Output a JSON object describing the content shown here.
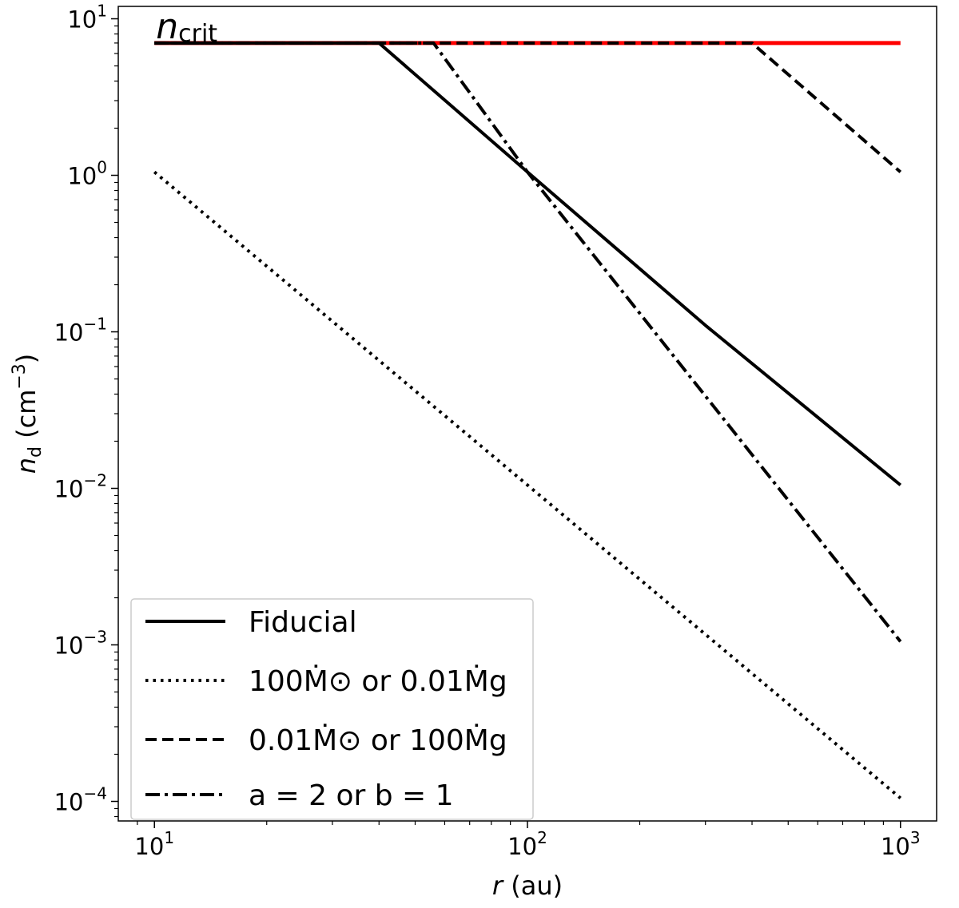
{
  "chart_data": {
    "type": "line",
    "xscale": "log",
    "yscale": "log",
    "xlim": [
      8.0,
      1250
    ],
    "ylim": [
      7.5e-05,
      12
    ],
    "grid": false,
    "legend_position": "lower-left",
    "x_ticks": [
      {
        "value": 10,
        "base": "10",
        "exp": "1"
      },
      {
        "value": 100,
        "base": "10",
        "exp": "2"
      },
      {
        "value": 1000,
        "base": "10",
        "exp": "3"
      }
    ],
    "y_ticks": [
      {
        "value": 0.0001,
        "base": "10",
        "exp": "−4"
      },
      {
        "value": 0.001,
        "base": "10",
        "exp": "−3"
      },
      {
        "value": 0.01,
        "base": "10",
        "exp": "−2"
      },
      {
        "value": 0.1,
        "base": "10",
        "exp": "−1"
      },
      {
        "value": 1,
        "base": "10",
        "exp": "0"
      },
      {
        "value": 10,
        "base": "10",
        "exp": "1"
      }
    ],
    "xlabel": {
      "var": "r",
      "rest": " (au)"
    },
    "ylabel": {
      "var": "n",
      "sub": "d",
      "rest": " (cm",
      "exp": "−3",
      "close": ")"
    },
    "annotation": {
      "var": "n",
      "sub": "crit"
    },
    "critical_line": {
      "color": "#ff0000",
      "x": [
        10,
        1000
      ],
      "y": [
        7.0,
        7.0
      ]
    },
    "series": [
      {
        "name": "Fiducial",
        "style": "solid",
        "color": "#000000",
        "x": [
          10,
          40,
          100,
          300,
          1000
        ],
        "y": [
          7.0,
          7.0,
          1.05,
          0.11,
          0.0105
        ]
      },
      {
        "name": "100Ṁ⊙ or 0.01Ṁg",
        "style": "dotted",
        "color": "#000000",
        "x": [
          10,
          100,
          1000
        ],
        "y": [
          1.05,
          0.0105,
          0.000105
        ]
      },
      {
        "name": "0.01Ṁ⊙ or 100Ṁg",
        "style": "dashed",
        "color": "#000000",
        "x": [
          10,
          400,
          1000
        ],
        "y": [
          7.0,
          7.0,
          1.05
        ]
      },
      {
        "name": "a = 2 or b = 1",
        "style": "dashdot",
        "color": "#000000",
        "x": [
          10,
          56,
          100,
          1000
        ],
        "y": [
          7.0,
          7.0,
          1.05,
          0.00105
        ]
      }
    ],
    "legend": [
      {
        "label": "Fiducial",
        "style": "solid"
      },
      {
        "label": "100Ṁ⊙ or 0.01Ṁg",
        "style": "dotted"
      },
      {
        "label": "0.01Ṁ⊙ or 100Ṁg",
        "style": "dashed"
      },
      {
        "label": "a = 2 or b = 1",
        "style": "dashdot"
      }
    ]
  }
}
